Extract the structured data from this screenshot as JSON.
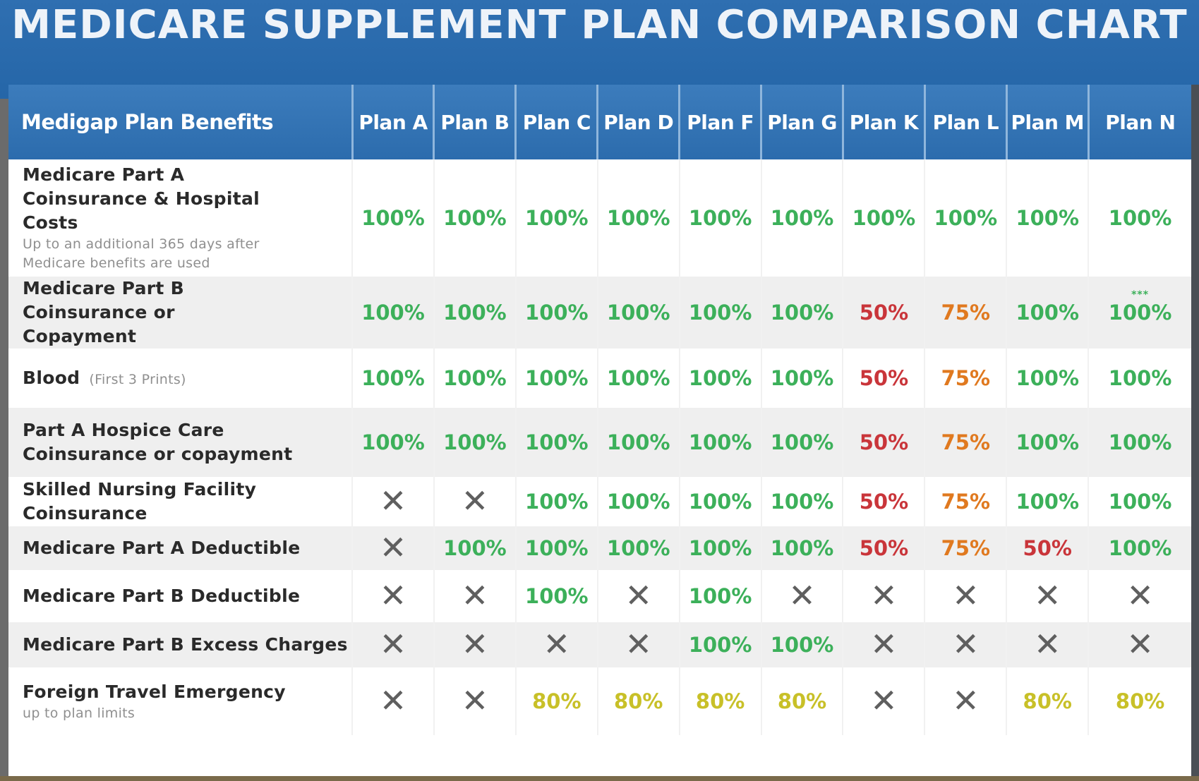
{
  "title": "MEDICARE SUPPLEMENT PLAN COMPARISON CHART",
  "colors": {
    "banner": "#2f6fb1",
    "header": "#3574b4",
    "full": "#3cb05a",
    "half": "#c9353a",
    "three_quarter": "#e0791f",
    "travel": "#c8c028",
    "not_covered": "#5f5f5f"
  },
  "table": {
    "benefit_header": "Medigap Plan Benefits",
    "plans": [
      "Plan A",
      "Plan B",
      "Plan C",
      "Plan D",
      "Plan F",
      "Plan G",
      "Plan K",
      "Plan L",
      "Plan M",
      "Plan N"
    ],
    "rows": [
      {
        "benefit": "Medicare Part A Coinsurance & Hospital Costs",
        "note": "Up to an additional 365  days after Medicare benefits are used",
        "values": [
          "100%",
          "100%",
          "100%",
          "100%",
          "100%",
          "100%",
          "100%",
          "100%",
          "100%",
          "100%"
        ]
      },
      {
        "benefit": "Medicare Part B Coinsurance or Copayment",
        "note": "",
        "values": [
          "100%",
          "100%",
          "100%",
          "100%",
          "100%",
          "100%",
          "50%",
          "75%",
          "100%",
          "100%"
        ],
        "plan_n_marker": "***"
      },
      {
        "benefit": "Blood",
        "note": "(First 3 Prints)",
        "values": [
          "100%",
          "100%",
          "100%",
          "100%",
          "100%",
          "100%",
          "50%",
          "75%",
          "100%",
          "100%"
        ]
      },
      {
        "benefit": "Part A Hospice Care Coinsurance or copayment",
        "note": "",
        "values": [
          "100%",
          "100%",
          "100%",
          "100%",
          "100%",
          "100%",
          "50%",
          "75%",
          "100%",
          "100%"
        ]
      },
      {
        "benefit": "Skilled Nursing Facility Coinsurance",
        "note": "",
        "values": [
          "✕",
          "✕",
          "100%",
          "100%",
          "100%",
          "100%",
          "50%",
          "75%",
          "100%",
          "100%"
        ]
      },
      {
        "benefit": "Medicare Part A Deductible",
        "note": "",
        "values": [
          "✕",
          "100%",
          "100%",
          "100%",
          "100%",
          "100%",
          "50%",
          "75%",
          "50%",
          "100%"
        ]
      },
      {
        "benefit": "Medicare Part B Deductible",
        "note": "",
        "values": [
          "✕",
          "✕",
          "100%",
          "✕",
          "100%",
          "✕",
          "✕",
          "✕",
          "✕",
          "✕"
        ]
      },
      {
        "benefit": "Medicare Part B Excess Charges",
        "note": "",
        "values": [
          "✕",
          "✕",
          "✕",
          "✕",
          "100%",
          "100%",
          "✕",
          "✕",
          "✕",
          "✕"
        ]
      },
      {
        "benefit": "Foreign Travel Emergency",
        "note": "up to plan limits",
        "values": [
          "✕",
          "✕",
          "80%",
          "80%",
          "80%",
          "80%",
          "✕",
          "✕",
          "80%",
          "80%"
        ]
      }
    ]
  }
}
